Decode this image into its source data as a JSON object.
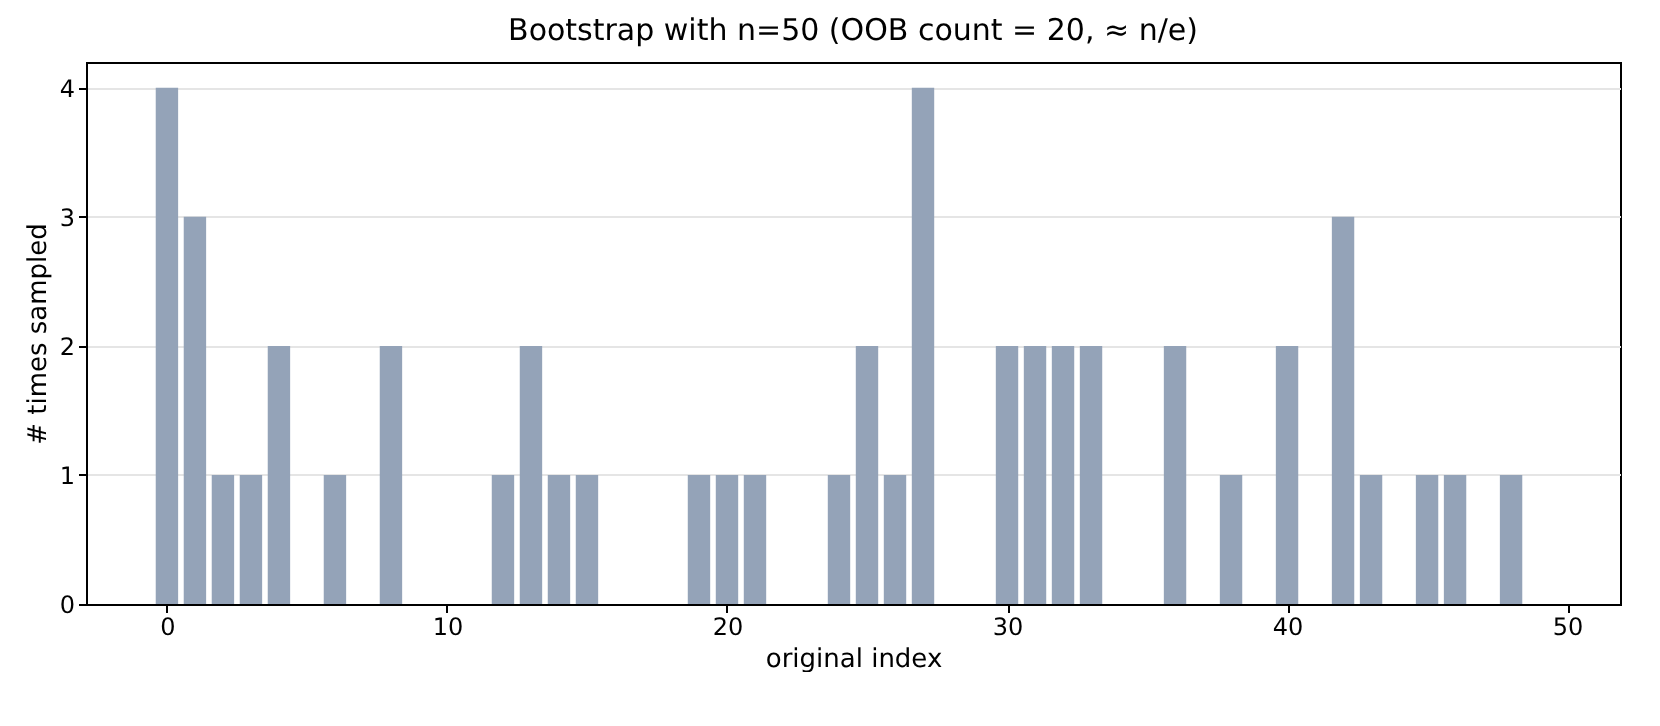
{
  "chart_data": {
    "type": "bar",
    "title": "Bootstrap with n=50  (OOB count = 20, ≈ n/e)",
    "xlabel": "original index",
    "ylabel": "# times sampled",
    "x": [
      0,
      1,
      2,
      3,
      4,
      5,
      6,
      7,
      8,
      9,
      10,
      11,
      12,
      13,
      14,
      15,
      16,
      17,
      18,
      19,
      20,
      21,
      22,
      23,
      24,
      25,
      26,
      27,
      28,
      29,
      30,
      31,
      32,
      33,
      34,
      35,
      36,
      37,
      38,
      39,
      40,
      41,
      42,
      43,
      44,
      45,
      46,
      47,
      48,
      49
    ],
    "values": [
      4,
      3,
      1,
      1,
      2,
      0,
      1,
      0,
      2,
      0,
      0,
      0,
      1,
      2,
      1,
      1,
      0,
      0,
      0,
      1,
      1,
      1,
      0,
      0,
      1,
      2,
      1,
      4,
      0,
      0,
      2,
      2,
      2,
      2,
      0,
      0,
      2,
      0,
      1,
      0,
      2,
      0,
      3,
      1,
      0,
      1,
      1,
      0,
      1,
      0
    ],
    "color": "#94a3b8",
    "xlim": [
      -2.89,
      51.89
    ],
    "xticks": [
      0,
      10,
      20,
      30,
      40,
      50
    ],
    "ylim": [
      0,
      4.2
    ],
    "yticks": [
      0,
      1,
      2,
      3,
      4
    ],
    "grid": "y"
  }
}
